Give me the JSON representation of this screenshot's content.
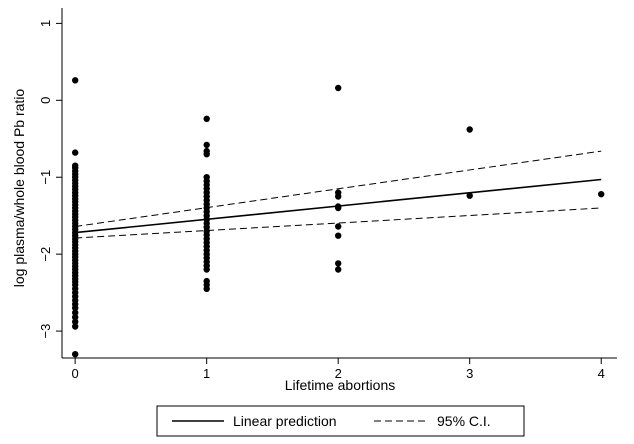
{
  "chart_data": {
    "type": "scatter",
    "title": "",
    "xlabel": "Lifetime abortions",
    "ylabel": "log plasma/whole blood Pb ratio",
    "xlim": [
      -0.1,
      4.12
    ],
    "ylim": [
      -3.35,
      1.2
    ],
    "xticks": [
      0,
      1,
      2,
      3,
      4
    ],
    "yticks": [
      -3,
      -2,
      -1,
      0,
      1
    ],
    "grid": false,
    "legend_position": "bottom",
    "series": [
      {
        "name": "",
        "kind": "points",
        "color": "#000000",
        "points": [
          [
            0,
            0.26
          ],
          [
            0,
            -0.68
          ],
          [
            0,
            -0.85
          ],
          [
            0,
            -0.88
          ],
          [
            0,
            -0.92
          ],
          [
            0,
            -0.96
          ],
          [
            0,
            -1.0
          ],
          [
            0,
            -1.04
          ],
          [
            0,
            -1.08
          ],
          [
            0,
            -1.12
          ],
          [
            0,
            -1.16
          ],
          [
            0,
            -1.2
          ],
          [
            0,
            -1.24
          ],
          [
            0,
            -1.28
          ],
          [
            0,
            -1.32
          ],
          [
            0,
            -1.36
          ],
          [
            0,
            -1.4
          ],
          [
            0,
            -1.44
          ],
          [
            0,
            -1.48
          ],
          [
            0,
            -1.52
          ],
          [
            0,
            -1.56
          ],
          [
            0,
            -1.6
          ],
          [
            0,
            -1.64
          ],
          [
            0,
            -1.68
          ],
          [
            0,
            -1.72
          ],
          [
            0,
            -1.76
          ],
          [
            0,
            -1.8
          ],
          [
            0,
            -1.84
          ],
          [
            0,
            -1.88
          ],
          [
            0,
            -1.92
          ],
          [
            0,
            -1.96
          ],
          [
            0,
            -2.0
          ],
          [
            0,
            -2.04
          ],
          [
            0,
            -2.08
          ],
          [
            0,
            -2.12
          ],
          [
            0,
            -2.16
          ],
          [
            0,
            -2.2
          ],
          [
            0,
            -2.24
          ],
          [
            0,
            -2.28
          ],
          [
            0,
            -2.32
          ],
          [
            0,
            -2.36
          ],
          [
            0,
            -2.4
          ],
          [
            0,
            -2.45
          ],
          [
            0,
            -2.5
          ],
          [
            0,
            -2.55
          ],
          [
            0,
            -2.6
          ],
          [
            0,
            -2.65
          ],
          [
            0,
            -2.7
          ],
          [
            0,
            -2.76
          ],
          [
            0,
            -2.82
          ],
          [
            0,
            -2.88
          ],
          [
            0,
            -2.94
          ],
          [
            0,
            -3.3
          ],
          [
            1,
            -0.24
          ],
          [
            1,
            -0.58
          ],
          [
            1,
            -0.66
          ],
          [
            1,
            -0.7
          ],
          [
            1,
            -1.0
          ],
          [
            1,
            -1.05
          ],
          [
            1,
            -1.1
          ],
          [
            1,
            -1.15
          ],
          [
            1,
            -1.2
          ],
          [
            1,
            -1.25
          ],
          [
            1,
            -1.3
          ],
          [
            1,
            -1.35
          ],
          [
            1,
            -1.4
          ],
          [
            1,
            -1.45
          ],
          [
            1,
            -1.5
          ],
          [
            1,
            -1.55
          ],
          [
            1,
            -1.6
          ],
          [
            1,
            -1.65
          ],
          [
            1,
            -1.7
          ],
          [
            1,
            -1.75
          ],
          [
            1,
            -1.8
          ],
          [
            1,
            -1.85
          ],
          [
            1,
            -1.9
          ],
          [
            1,
            -1.95
          ],
          [
            1,
            -2.0
          ],
          [
            1,
            -2.05
          ],
          [
            1,
            -2.1
          ],
          [
            1,
            -2.15
          ],
          [
            1,
            -2.2
          ],
          [
            1,
            -2.35
          ],
          [
            1,
            -2.4
          ],
          [
            1,
            -2.45
          ],
          [
            2,
            0.16
          ],
          [
            2,
            -1.2
          ],
          [
            2,
            -1.25
          ],
          [
            2,
            -1.38
          ],
          [
            2,
            -1.4
          ],
          [
            2,
            -1.64
          ],
          [
            2,
            -1.76
          ],
          [
            2,
            -2.12
          ],
          [
            2,
            -2.2
          ],
          [
            3,
            -0.38
          ],
          [
            3,
            -1.24
          ],
          [
            4,
            -1.22
          ]
        ]
      },
      {
        "name": "Linear prediction",
        "kind": "line",
        "style": "solid",
        "color": "#000000",
        "x": [
          0,
          4
        ],
        "y": [
          -1.72,
          -1.03
        ]
      },
      {
        "name": "95% C.I.",
        "kind": "line",
        "style": "dashed",
        "color": "#000000",
        "x": [
          0,
          4
        ],
        "y": [
          -1.64,
          -0.66
        ]
      },
      {
        "name": "95% C.I.",
        "kind": "line",
        "style": "dashed",
        "color": "#000000",
        "x": [
          0,
          4
        ],
        "y": [
          -1.79,
          -1.4
        ]
      }
    ],
    "legend": [
      {
        "label": "Linear prediction",
        "style": "solid"
      },
      {
        "label": "95% C.I.",
        "style": "dashed"
      }
    ]
  }
}
